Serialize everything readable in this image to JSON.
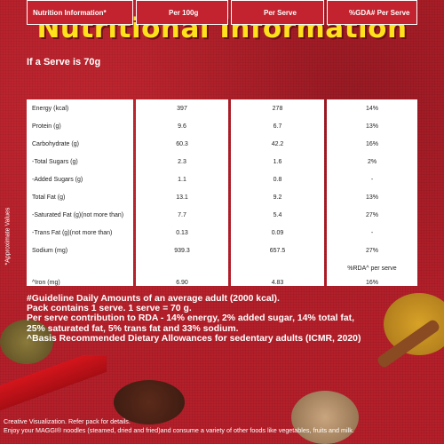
{
  "title": "Nutritional Information",
  "serve_note": "If a Serve is 70g",
  "side_note": "*Approximate Values",
  "table": {
    "headers": [
      "Nutrition Information*",
      "Per 100g",
      "Per Serve",
      "%GDA# Per Serve"
    ],
    "rows": [
      {
        "label": "Energy (kcal)",
        "per100": "397",
        "serve": "278",
        "gda": "14%"
      },
      {
        "label": "Protein (g)",
        "per100": "9.6",
        "serve": "6.7",
        "gda": "13%"
      },
      {
        "label": "Carbohydrate (g)",
        "per100": "60.3",
        "serve": "42.2",
        "gda": "16%"
      },
      {
        "label": "-Total Sugars (g)",
        "per100": "2.3",
        "serve": "1.6",
        "gda": "2%"
      },
      {
        "label": "-Added Sugars (g)",
        "per100": "1.1",
        "serve": "0.8",
        "gda": "-"
      },
      {
        "label": "Total Fat (g)",
        "per100": "13.1",
        "serve": "9.2",
        "gda": "13%"
      },
      {
        "label": "-Saturated Fat (g)(not more than)",
        "per100": "7.7",
        "serve": "5.4",
        "gda": "27%"
      },
      {
        "label": "-Trans Fat (g)(not more than)",
        "per100": "0.13",
        "serve": "0.09",
        "gda": "-"
      },
      {
        "label": "Sodium (mg)",
        "per100": "939.3",
        "serve": "657.5",
        "gda": "27%"
      },
      {
        "label": "",
        "per100": "",
        "serve": "",
        "gda": "%RDA^ per serve"
      },
      {
        "label": "^Iron (mg)",
        "per100": "6.90",
        "serve": "4.83",
        "gda": "16%"
      }
    ]
  },
  "footnotes": [
    "#Guideline Daily Amounts of an average adult  (2000 kcal).",
    "Pack contains 1 serve. 1 serve = 70 g.",
    "Per serve contribution to RDA - 14% energy, 2% added sugar, 14% total fat,",
    "25% saturated fat, 5% trans fat and 33% sodium.",
    "^Basis Recommended Dietary Allowances for sedentary adults (ICMR, 2020)"
  ],
  "bottom_lines": [
    "Creative Visualization. Refer pack for details.",
    "Enjoy your MAGGI® noodles (steamed, dried and fried)and consume a variety of other foods like vegetables, fruits and milk."
  ]
}
